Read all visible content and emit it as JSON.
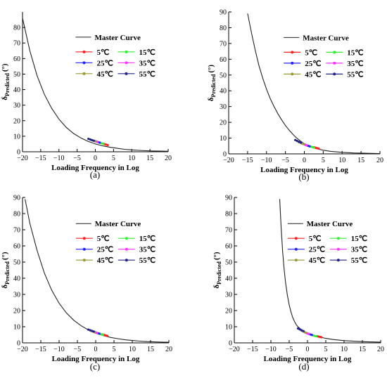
{
  "chart_data": [
    {
      "type": "line",
      "panel_label": "(a)",
      "xlabel": "Loading Frequency in Log",
      "ylabel_main": "δ",
      "ylabel_sub": "Predicted",
      "ylabel_unit": "(°)",
      "xlim": [
        -20,
        20
      ],
      "ylim": [
        0,
        90
      ],
      "xticks": [
        "−20",
        "−15",
        "−10",
        "−5",
        "0",
        "5",
        "10",
        "15",
        "20"
      ],
      "yticks": [
        "0",
        "10",
        "20",
        "30",
        "40",
        "50",
        "60",
        "70",
        "80"
      ],
      "legend_position": "upper-right",
      "legend_title": "Master Curve",
      "master_curve": {
        "name": "Master Curve",
        "x": [
          -20,
          -18,
          -16,
          -14,
          -12,
          -10,
          -8,
          -6,
          -4,
          -2,
          0,
          2,
          4,
          6,
          8,
          10,
          12,
          14,
          16,
          18,
          20
        ],
        "y": [
          86,
          65,
          49,
          37,
          28,
          21,
          15.7,
          11.8,
          8.9,
          6.7,
          5.0,
          3.8,
          2.9,
          2.2,
          1.6,
          1.2,
          0.9,
          0.7,
          0.5,
          0.4,
          0.3
        ]
      },
      "series": [
        {
          "name": "5℃",
          "color": "#ff2020",
          "x": [
            2.2,
            2.6,
            3.0,
            3.4
          ],
          "y": [
            5.2,
            4.9,
            4.6,
            4.3
          ]
        },
        {
          "name": "15℃",
          "color": "#33ee33",
          "x": [
            1.0,
            1.4,
            1.8,
            2.2
          ],
          "y": [
            6.0,
            5.7,
            5.4,
            5.1
          ]
        },
        {
          "name": "25℃",
          "color": "#2222ff",
          "x": [
            0.0,
            0.4,
            0.8,
            1.2
          ],
          "y": [
            6.8,
            6.5,
            6.2,
            5.9
          ]
        },
        {
          "name": "35℃",
          "color": "#ff33ff",
          "x": [
            -0.6,
            -0.2,
            0.2,
            0.6
          ],
          "y": [
            7.2,
            6.9,
            6.6,
            6.3
          ]
        },
        {
          "name": "45℃",
          "color": "#999933",
          "x": [
            -1.2,
            -0.8,
            -0.4,
            0.0
          ],
          "y": [
            7.7,
            7.4,
            7.1,
            6.8
          ]
        },
        {
          "name": "55℃",
          "color": "#222288",
          "x": [
            -1.9,
            -1.4,
            -0.9,
            -0.4
          ],
          "y": [
            8.3,
            7.9,
            7.5,
            7.1
          ]
        }
      ]
    },
    {
      "type": "line",
      "panel_label": "(b)",
      "xlabel": "Loading Frequency in Log",
      "ylabel_main": "δ",
      "ylabel_sub": "Predicted",
      "ylabel_unit": "(°)",
      "xlim": [
        -20,
        20
      ],
      "ylim": [
        0,
        90
      ],
      "xticks": [
        "−20",
        "−15",
        "−10",
        "−5",
        "0",
        "5",
        "10",
        "15",
        "20"
      ],
      "yticks": [
        "0",
        "10",
        "20",
        "30",
        "40",
        "50",
        "60",
        "70",
        "80",
        "90"
      ],
      "legend_position": "upper-right",
      "legend_title": "Master Curve",
      "master_curve": {
        "name": "Master Curve",
        "x": [
          -15,
          -14,
          -13,
          -12,
          -11,
          -10,
          -9,
          -8,
          -7,
          -6,
          -5,
          -4,
          -3,
          -2,
          -1,
          0,
          1,
          2,
          3,
          5,
          7,
          10,
          13,
          16,
          20
        ],
        "y": [
          89,
          77,
          66,
          56,
          48,
          41,
          35,
          30,
          25.5,
          21.5,
          18,
          15,
          12.3,
          10,
          8.1,
          6.5,
          5.2,
          4.2,
          3.4,
          2.3,
          1.6,
          1.0,
          0.6,
          0.4,
          0.2
        ]
      },
      "series": [
        {
          "name": "5℃",
          "color": "#ff2020",
          "x": [
            2.6,
            3.0,
            3.4,
            3.8
          ],
          "y": [
            4.2,
            3.9,
            3.6,
            3.4
          ]
        },
        {
          "name": "15℃",
          "color": "#33ee33",
          "x": [
            1.4,
            1.8,
            2.2,
            2.6
          ],
          "y": [
            4.8,
            4.5,
            4.2,
            3.9
          ]
        },
        {
          "name": "25℃",
          "color": "#2222ff",
          "x": [
            0.2,
            0.6,
            1.0,
            1.4
          ],
          "y": [
            5.8,
            5.4,
            5.1,
            4.8
          ]
        },
        {
          "name": "35℃",
          "color": "#ff33ff",
          "x": [
            -0.6,
            -0.2,
            0.2,
            0.6
          ],
          "y": [
            6.6,
            6.2,
            5.8,
            5.4
          ]
        },
        {
          "name": "45℃",
          "color": "#999933",
          "x": [
            -1.4,
            -1.0,
            -0.6,
            -0.2
          ],
          "y": [
            7.4,
            7.0,
            6.6,
            6.2
          ]
        },
        {
          "name": "55℃",
          "color": "#222288",
          "x": [
            -2.4,
            -1.9,
            -1.4,
            -0.9
          ],
          "y": [
            8.8,
            8.2,
            7.6,
            7.1
          ]
        }
      ]
    },
    {
      "type": "line",
      "panel_label": "(c)",
      "xlabel": "Loading Frequency in Log",
      "ylabel_main": "δ",
      "ylabel_sub": "Predicted",
      "ylabel_unit": "(°)",
      "xlim": [
        -20,
        20
      ],
      "ylim": [
        0,
        90
      ],
      "xticks": [
        "−20",
        "−15",
        "−10",
        "−5",
        "0",
        "5",
        "10",
        "15",
        "20"
      ],
      "yticks": [
        "0",
        "10",
        "20",
        "30",
        "40",
        "50",
        "60",
        "70",
        "80",
        "90"
      ],
      "legend_position": "upper-right",
      "legend_title": "Master Curve",
      "master_curve": {
        "name": "Master Curve",
        "x": [
          -19.3,
          -18,
          -16,
          -14,
          -12,
          -10,
          -8,
          -6,
          -4,
          -2,
          0,
          2,
          4,
          6,
          8,
          10,
          12,
          14,
          16,
          18,
          20
        ],
        "y": [
          89,
          74,
          57,
          43,
          32.5,
          24.5,
          18.5,
          14,
          10.6,
          8.0,
          6.0,
          4.5,
          3.4,
          2.6,
          1.9,
          1.5,
          1.1,
          0.8,
          0.6,
          0.5,
          0.4
        ]
      },
      "series": [
        {
          "name": "5℃",
          "color": "#ff2020",
          "x": [
            2.0,
            2.4,
            2.8,
            3.2
          ],
          "y": [
            5.2,
            4.9,
            4.6,
            4.3
          ]
        },
        {
          "name": "15℃",
          "color": "#33ee33",
          "x": [
            0.8,
            1.2,
            1.6,
            2.0
          ],
          "y": [
            5.9,
            5.6,
            5.3,
            5.0
          ]
        },
        {
          "name": "25℃",
          "color": "#2222ff",
          "x": [
            -0.2,
            0.2,
            0.6,
            1.0
          ],
          "y": [
            6.6,
            6.3,
            6.0,
            5.7
          ]
        },
        {
          "name": "35℃",
          "color": "#ff33ff",
          "x": [
            -0.8,
            -0.4,
            0.0,
            0.4
          ],
          "y": [
            7.0,
            6.7,
            6.4,
            6.1
          ]
        },
        {
          "name": "45℃",
          "color": "#999933",
          "x": [
            -1.4,
            -1.0,
            -0.6,
            -0.2
          ],
          "y": [
            7.5,
            7.2,
            6.9,
            6.6
          ]
        },
        {
          "name": "55℃",
          "color": "#222288",
          "x": [
            -2.0,
            -1.5,
            -1.0,
            -0.5
          ],
          "y": [
            8.2,
            7.8,
            7.4,
            7.0
          ]
        }
      ]
    },
    {
      "type": "line",
      "panel_label": "(d)",
      "xlabel": "Loading Frequency in Log",
      "ylabel_main": "δ",
      "ylabel_sub": "Predicted",
      "ylabel_unit": "(°)",
      "xlim": [
        -20,
        20
      ],
      "ylim": [
        0,
        90
      ],
      "xticks": [
        "−20",
        "−15",
        "−10",
        "−5",
        "0",
        "5",
        "10",
        "15",
        "20"
      ],
      "yticks": [
        "0",
        "10",
        "20",
        "30",
        "40",
        "50",
        "60",
        "70",
        "80",
        "90"
      ],
      "legend_position": "upper-right",
      "legend_title": "Master Curve",
      "master_curve": {
        "name": "Master Curve",
        "x": [
          -7.6,
          -7.2,
          -6.8,
          -6.4,
          -6,
          -5.5,
          -5,
          -4.5,
          -4,
          -3.5,
          -3,
          -2.5,
          -2,
          -1,
          0,
          1,
          2,
          3,
          5,
          7,
          10,
          13,
          16,
          20
        ],
        "y": [
          89,
          71,
          57,
          46,
          37.5,
          29.5,
          23.5,
          19,
          15.5,
          13,
          11,
          9.8,
          8.8,
          7.3,
          6.1,
          5.2,
          4.4,
          3.8,
          2.8,
          2.1,
          1.4,
          1.0,
          0.7,
          0.5
        ]
      },
      "series": [
        {
          "name": "5℃",
          "color": "#ff2020",
          "x": [
            2.6,
            3.0,
            3.4,
            3.8
          ],
          "y": [
            4.1,
            3.9,
            3.7,
            3.5
          ]
        },
        {
          "name": "15℃",
          "color": "#33ee33",
          "x": [
            1.2,
            1.6,
            2.0,
            2.4
          ],
          "y": [
            4.9,
            4.6,
            4.3,
            4.1
          ]
        },
        {
          "name": "25℃",
          "color": "#2222ff",
          "x": [
            0.0,
            0.4,
            0.8,
            1.2
          ],
          "y": [
            5.8,
            5.5,
            5.2,
            4.9
          ]
        },
        {
          "name": "35℃",
          "color": "#ff33ff",
          "x": [
            -0.8,
            -0.4,
            0.0,
            0.4
          ],
          "y": [
            6.6,
            6.2,
            5.9,
            5.6
          ]
        },
        {
          "name": "45℃",
          "color": "#999933",
          "x": [
            -1.6,
            -1.2,
            -0.8,
            -0.4
          ],
          "y": [
            7.5,
            7.1,
            6.7,
            6.3
          ]
        },
        {
          "name": "55℃",
          "color": "#222288",
          "x": [
            -2.6,
            -2.1,
            -1.6,
            -1.1
          ],
          "y": [
            8.9,
            8.3,
            7.8,
            7.3
          ]
        }
      ]
    }
  ]
}
